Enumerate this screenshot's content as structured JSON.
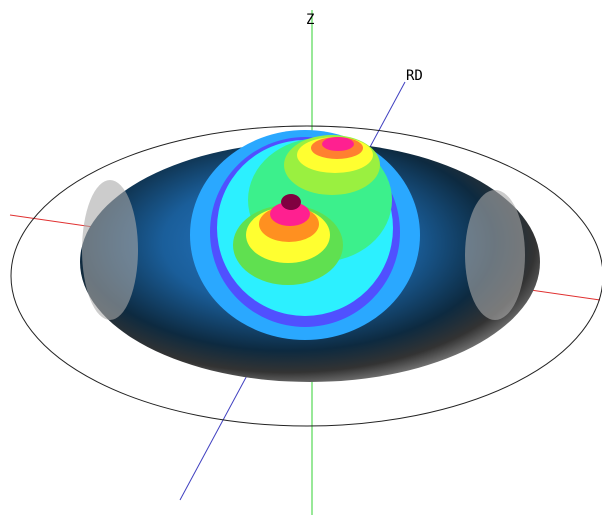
{
  "axes": {
    "z_label": "Z",
    "rd_label": "RD"
  }
}
